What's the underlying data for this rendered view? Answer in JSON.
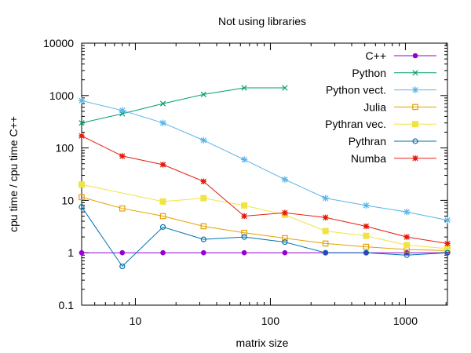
{
  "chart_data": {
    "type": "line",
    "title": "Not using libraries",
    "xlabel": "matrix size",
    "ylabel": "cpu time / cpu time C++",
    "x_scale": "log",
    "y_scale": "log",
    "xlim": [
      4,
      2048
    ],
    "ylim": [
      0.1,
      10000
    ],
    "x_ticks": [
      {
        "value": 10,
        "label": "10"
      },
      {
        "value": 100,
        "label": "100"
      },
      {
        "value": 1000,
        "label": "1000"
      }
    ],
    "y_ticks": [
      {
        "value": 0.1,
        "label": "0.1"
      },
      {
        "value": 1,
        "label": "1"
      },
      {
        "value": 10,
        "label": "10"
      },
      {
        "value": 100,
        "label": "100"
      },
      {
        "value": 1000,
        "label": "1000"
      },
      {
        "value": 10000,
        "label": "10000"
      }
    ],
    "grid": false,
    "legend_position": "top-right",
    "series": [
      {
        "name": "C++",
        "color": "#9400d3",
        "marker": "filled-circle",
        "x": [
          4,
          8,
          16,
          32,
          64,
          128,
          256,
          512,
          1024,
          2048
        ],
        "y": [
          1,
          1,
          1,
          1,
          1,
          1,
          1,
          1,
          1,
          1
        ]
      },
      {
        "name": "Python",
        "color": "#009e73",
        "marker": "cross",
        "x": [
          4,
          8,
          16,
          32,
          64,
          128
        ],
        "y": [
          300,
          450,
          700,
          1050,
          1400,
          1400
        ]
      },
      {
        "name": "Python vect.",
        "color": "#56b4e9",
        "marker": "star",
        "x": [
          4,
          8,
          16,
          32,
          64,
          128,
          256,
          512,
          1024,
          2048
        ],
        "y": [
          800,
          520,
          300,
          140,
          60,
          25,
          11,
          8,
          6,
          4.2
        ]
      },
      {
        "name": "Julia",
        "color": "#e69f00",
        "marker": "open-square",
        "x": [
          4,
          8,
          16,
          32,
          64,
          128,
          256,
          512,
          1024,
          2048
        ],
        "y": [
          11.5,
          7,
          5,
          3.2,
          2.4,
          1.9,
          1.5,
          1.3,
          1.15,
          1.1
        ]
      },
      {
        "name": "Pythran vec.",
        "color": "#f0e442",
        "marker": "filled-square",
        "x": [
          4,
          16,
          32,
          64,
          128,
          256,
          512,
          1024,
          2048
        ],
        "y": [
          20,
          9.5,
          11,
          8,
          5.3,
          2.6,
          2.1,
          1.4,
          1.2
        ]
      },
      {
        "name": "Pythran",
        "color": "#0072b2",
        "marker": "open-circle",
        "x": [
          4,
          8,
          16,
          32,
          64,
          128,
          256,
          512,
          1024,
          2048
        ],
        "y": [
          7.5,
          0.55,
          3.1,
          1.8,
          2.0,
          1.6,
          1.0,
          1.0,
          0.9,
          1.0
        ]
      },
      {
        "name": "Numba",
        "color": "#e51e10",
        "marker": "filled-star",
        "x": [
          4,
          8,
          16,
          32,
          64,
          128,
          256,
          512,
          1024,
          2048
        ],
        "y": [
          170,
          70,
          48,
          23,
          5,
          5.8,
          4.7,
          3.2,
          2.0,
          1.5
        ]
      }
    ]
  }
}
